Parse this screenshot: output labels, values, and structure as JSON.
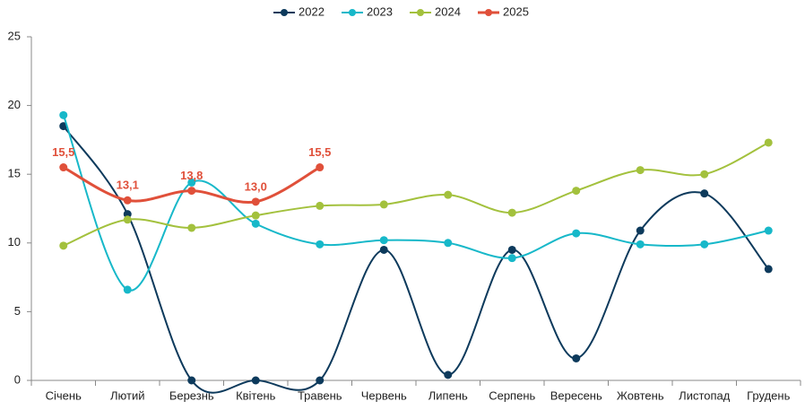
{
  "chart_data": {
    "type": "line",
    "categories": [
      "Січень",
      "Лютий",
      "Березнь",
      "Квітень",
      "Травень",
      "Червень",
      "Липень",
      "Серпень",
      "Вересень",
      "Жовтень",
      "Листопад",
      "Грудень"
    ],
    "series": [
      {
        "name": "2022",
        "color": "#0d3a5c",
        "values": [
          18.5,
          12.1,
          0,
          0,
          0,
          9.5,
          0.4,
          9.5,
          1.6,
          10.9,
          13.6,
          8.1
        ]
      },
      {
        "name": "2023",
        "color": "#17b8c9",
        "values": [
          19.3,
          6.6,
          14.4,
          11.4,
          9.9,
          10.2,
          10.0,
          8.9,
          10.7,
          9.9,
          9.9,
          10.9
        ]
      },
      {
        "name": "2024",
        "color": "#a3c13d",
        "values": [
          9.8,
          11.7,
          11.1,
          12.0,
          12.7,
          12.8,
          13.5,
          12.2,
          13.8,
          15.3,
          15.0,
          17.3
        ]
      },
      {
        "name": "2025",
        "color": "#e0503a",
        "values": [
          15.5,
          13.1,
          13.8,
          13.0,
          15.5,
          null,
          null,
          null,
          null,
          null,
          null,
          null
        ],
        "value_labels": [
          "15,5",
          "13,1",
          "13,8",
          "13,0",
          "15,5",
          null,
          null,
          null,
          null,
          null,
          null,
          null
        ]
      }
    ],
    "ylim": [
      0,
      25
    ],
    "yticks": [
      0,
      5,
      10,
      15,
      20,
      25
    ],
    "grid": false,
    "smooth": true,
    "legend": "top"
  }
}
